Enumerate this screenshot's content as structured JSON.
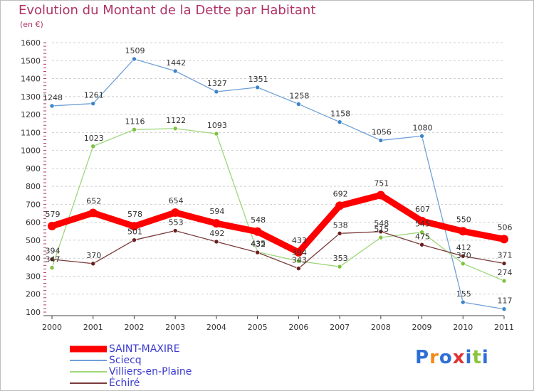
{
  "title": "Evolution du Montant de la Dette par Habitant",
  "unit": "(en €)",
  "logo": {
    "letters": [
      "P",
      "r",
      "o",
      "x",
      "i",
      "t",
      "i"
    ],
    "colors": [
      "#2e6fd6",
      "#f08a1a",
      "#2e6fd6",
      "#e03434",
      "#2e6fd6",
      "#8ac541",
      "#2e6fd6"
    ]
  },
  "chart_data": {
    "type": "line",
    "x": [
      "2000",
      "2001",
      "2002",
      "2003",
      "2004",
      "2005",
      "2006",
      "2007",
      "2008",
      "2009",
      "2010",
      "2011"
    ],
    "ylim": [
      100,
      1600
    ],
    "yticks": [
      100,
      200,
      300,
      400,
      500,
      600,
      700,
      800,
      900,
      1000,
      1100,
      1200,
      1300,
      1400,
      1500,
      1600
    ],
    "grid": "horizontal-dashed",
    "legend_position": "bottom-left",
    "series": [
      {
        "name": "SAINT-MAXIRE",
        "values": [
          579,
          652,
          578,
          654,
          594,
          548,
          433,
          692,
          751,
          607,
          550,
          506
        ],
        "color": "#ff0000",
        "width": 9,
        "marker_r": 6
      },
      {
        "name": "Sciecq",
        "values": [
          1248,
          1261,
          1509,
          1442,
          1327,
          1351,
          1258,
          1158,
          1056,
          1080,
          155,
          117
        ],
        "color": "#6fa0d6",
        "width": 1.3,
        "marker_r": 3,
        "marker_color": "#3d85c8"
      },
      {
        "name": "Villiers-en-Plaine",
        "values": [
          347,
          1023,
          1116,
          1122,
          1093,
          435,
          384,
          353,
          515,
          545,
          370,
          274
        ],
        "color": "#9ed67a",
        "width": 1.3,
        "marker_r": 3,
        "marker_color": "#7ec241"
      },
      {
        "name": "Échiré",
        "values": [
          394,
          370,
          501,
          553,
          492,
          432,
          343,
          538,
          548,
          475,
          412,
          371
        ],
        "color": "#7a3a3a",
        "width": 1.3,
        "marker_r": 3,
        "marker_color": "#6b1e1e"
      }
    ],
    "labels": [
      {
        "series": 0,
        "index": 0,
        "text": "579",
        "pos": "above"
      },
      {
        "series": 0,
        "index": 1,
        "text": "652",
        "pos": "above"
      },
      {
        "series": 0,
        "index": 2,
        "text": "578",
        "pos": "above"
      },
      {
        "series": 0,
        "index": 3,
        "text": "654",
        "pos": "above"
      },
      {
        "series": 0,
        "index": 4,
        "text": "594",
        "pos": "above"
      },
      {
        "series": 0,
        "index": 5,
        "text": "548",
        "pos": "above"
      },
      {
        "series": 0,
        "index": 6,
        "text": "433",
        "pos": "above"
      },
      {
        "series": 0,
        "index": 7,
        "text": "692",
        "pos": "above"
      },
      {
        "series": 0,
        "index": 8,
        "text": "751",
        "pos": "above"
      },
      {
        "series": 0,
        "index": 9,
        "text": "607",
        "pos": "above"
      },
      {
        "series": 0,
        "index": 10,
        "text": "550",
        "pos": "above"
      },
      {
        "series": 0,
        "index": 11,
        "text": "506",
        "pos": "above"
      },
      {
        "series": 1,
        "index": 0,
        "text": "1248",
        "pos": "above"
      },
      {
        "series": 1,
        "index": 1,
        "text": "1261",
        "pos": "above"
      },
      {
        "series": 1,
        "index": 2,
        "text": "1509",
        "pos": "above"
      },
      {
        "series": 1,
        "index": 3,
        "text": "1442",
        "pos": "above"
      },
      {
        "series": 1,
        "index": 4,
        "text": "1327",
        "pos": "above"
      },
      {
        "series": 1,
        "index": 5,
        "text": "1351",
        "pos": "above"
      },
      {
        "series": 1,
        "index": 6,
        "text": "1258",
        "pos": "above"
      },
      {
        "series": 1,
        "index": 7,
        "text": "1158",
        "pos": "above"
      },
      {
        "series": 1,
        "index": 8,
        "text": "1056",
        "pos": "above"
      },
      {
        "series": 1,
        "index": 9,
        "text": "1080",
        "pos": "above"
      },
      {
        "series": 1,
        "index": 10,
        "text": "155",
        "pos": "above"
      },
      {
        "series": 1,
        "index": 11,
        "text": "117",
        "pos": "above"
      },
      {
        "series": 2,
        "index": 0,
        "text": "347",
        "pos": "above"
      },
      {
        "series": 2,
        "index": 1,
        "text": "1023",
        "pos": "above"
      },
      {
        "series": 2,
        "index": 2,
        "text": "1116",
        "pos": "above"
      },
      {
        "series": 2,
        "index": 3,
        "text": "1122",
        "pos": "above"
      },
      {
        "series": 2,
        "index": 4,
        "text": "1093",
        "pos": "above"
      },
      {
        "series": 2,
        "index": 5,
        "text": "435",
        "pos": "above"
      },
      {
        "series": 2,
        "index": 6,
        "text": "384",
        "pos": "above"
      },
      {
        "series": 2,
        "index": 7,
        "text": "353",
        "pos": "above"
      },
      {
        "series": 2,
        "index": 8,
        "text": "515",
        "pos": "above"
      },
      {
        "series": 2,
        "index": 9,
        "text": "545",
        "pos": "above"
      },
      {
        "series": 2,
        "index": 10,
        "text": "370",
        "pos": "above"
      },
      {
        "series": 2,
        "index": 11,
        "text": "274",
        "pos": "above"
      },
      {
        "series": 3,
        "index": 0,
        "text": "394",
        "pos": "above"
      },
      {
        "series": 3,
        "index": 1,
        "text": "370",
        "pos": "above"
      },
      {
        "series": 3,
        "index": 2,
        "text": "501",
        "pos": "above"
      },
      {
        "series": 3,
        "index": 3,
        "text": "553",
        "pos": "above"
      },
      {
        "series": 3,
        "index": 4,
        "text": "492",
        "pos": "above"
      },
      {
        "series": 3,
        "index": 5,
        "text": "432",
        "pos": "above"
      },
      {
        "series": 3,
        "index": 6,
        "text": "343",
        "pos": "above"
      },
      {
        "series": 3,
        "index": 7,
        "text": "538",
        "pos": "above"
      },
      {
        "series": 3,
        "index": 8,
        "text": "548",
        "pos": "above"
      },
      {
        "series": 3,
        "index": 9,
        "text": "475",
        "pos": "above"
      },
      {
        "series": 3,
        "index": 10,
        "text": "412",
        "pos": "above"
      },
      {
        "series": 3,
        "index": 11,
        "text": "371",
        "pos": "above"
      }
    ]
  }
}
